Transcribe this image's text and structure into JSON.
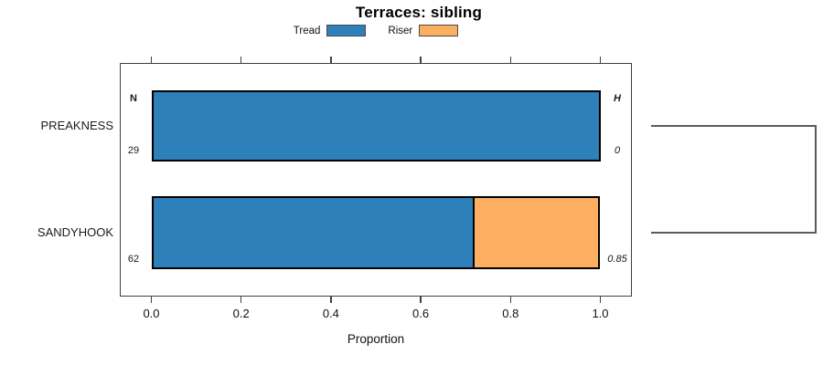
{
  "chart_data": {
    "type": "bar",
    "orientation": "horizontal",
    "stacked": true,
    "title": "Terraces: sibling",
    "xlabel": "Proportion",
    "xlim": [
      0,
      1
    ],
    "xticks": [
      0,
      0.2,
      0.4,
      0.6,
      0.8,
      1.0
    ],
    "xtick_labels": [
      "0.0",
      "0.2",
      "0.4",
      "0.6",
      "0.8",
      "1.0"
    ],
    "categories": [
      "PREAKNESS",
      "SANDYHOOK"
    ],
    "series": [
      {
        "name": "Tread",
        "color": "#2e80ba",
        "values": [
          1.0,
          0.72
        ]
      },
      {
        "name": "Riser",
        "color": "#fcae61",
        "values": [
          0.0,
          0.28
        ]
      }
    ],
    "legend_position": "top",
    "grid": false,
    "annotations": {
      "n_header": "N",
      "h_header": "H",
      "n_values": [
        "29",
        "62"
      ],
      "h_values": [
        "0",
        "0.85"
      ]
    },
    "cluster_bracket": true
  },
  "colors": {
    "tread": "#2e80ba",
    "riser": "#fcae61",
    "bar_border": "#000000",
    "box_border": "#3f3f3f",
    "bracket": "#5a5a5a"
  }
}
